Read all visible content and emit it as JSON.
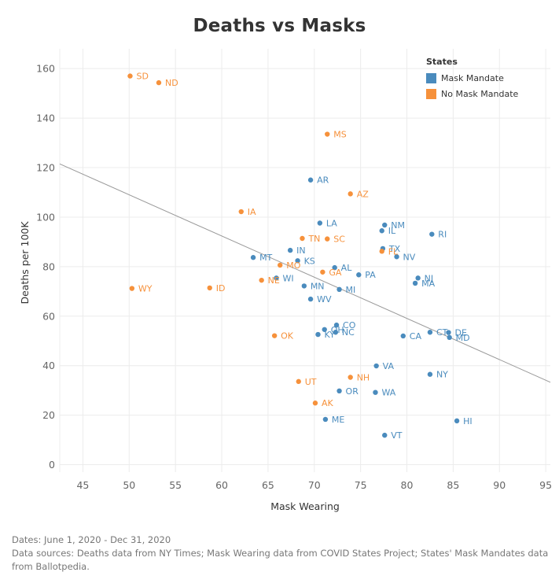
{
  "title": "Deaths vs Masks",
  "colors": {
    "mask": "#4a8bbd",
    "no_mask": "#f6913b",
    "trend": "#999999",
    "grid": "#ececec"
  },
  "legend": {
    "title": "States",
    "items": [
      {
        "key": "mask",
        "label": "Mask Mandate"
      },
      {
        "key": "no_mask",
        "label": "No Mask Mandate"
      }
    ]
  },
  "footnote": {
    "dates": "Dates: June 1, 2020 - Dec 31, 2020",
    "sources": "Data sources: Deaths data from NY Times; Mask Wearing data from COVID States Project; States' Mask Mandates data from Ballotpedia."
  },
  "chart_data": {
    "type": "scatter",
    "xlabel": "Mask Wearing",
    "ylabel": "Deaths per 100K",
    "xlim": [
      42.5,
      95.5
    ],
    "ylim": [
      -3,
      168
    ],
    "xticks": [
      45,
      50,
      55,
      60,
      65,
      70,
      75,
      80,
      85,
      90,
      95
    ],
    "yticks": [
      0,
      20,
      40,
      60,
      80,
      100,
      120,
      140,
      160
    ],
    "trend_line": {
      "x": [
        42.5,
        95.5
      ],
      "y": [
        121.5,
        33.3
      ]
    },
    "series": [
      {
        "name": "Mask Mandate",
        "key": "mask",
        "points": [
          {
            "label": "AR",
            "x": 69.6,
            "y": 115.0
          },
          {
            "label": "NM",
            "x": 77.6,
            "y": 96.8
          },
          {
            "label": "IL",
            "x": 77.3,
            "y": 94.5
          },
          {
            "label": "RI",
            "x": 82.7,
            "y": 93.1
          },
          {
            "label": "LA",
            "x": 70.6,
            "y": 97.6
          },
          {
            "label": "TX",
            "x": 77.4,
            "y": 87.3
          },
          {
            "label": "NV",
            "x": 78.9,
            "y": 84.0
          },
          {
            "label": "IN",
            "x": 67.4,
            "y": 86.6
          },
          {
            "label": "KS",
            "x": 68.2,
            "y": 82.4
          },
          {
            "label": "MT",
            "x": 63.4,
            "y": 83.7
          },
          {
            "label": "AL",
            "x": 72.2,
            "y": 79.6
          },
          {
            "label": "PA",
            "x": 74.8,
            "y": 76.7
          },
          {
            "label": "NJ",
            "x": 81.2,
            "y": 75.4
          },
          {
            "label": "MA",
            "x": 80.9,
            "y": 73.3
          },
          {
            "label": "WI",
            "x": 65.9,
            "y": 75.4
          },
          {
            "label": "MN",
            "x": 68.9,
            "y": 72.2
          },
          {
            "label": "MI",
            "x": 72.7,
            "y": 70.8
          },
          {
            "label": "WV",
            "x": 69.6,
            "y": 66.9
          },
          {
            "label": "CO",
            "x": 72.4,
            "y": 56.4
          },
          {
            "label": "OH",
            "x": 71.1,
            "y": 54.6
          },
          {
            "label": "KY",
            "x": 70.4,
            "y": 52.6
          },
          {
            "label": "NC",
            "x": 72.3,
            "y": 53.5
          },
          {
            "label": "CT",
            "x": 82.5,
            "y": 53.5
          },
          {
            "label": "DE",
            "x": 84.5,
            "y": 53.4
          },
          {
            "label": "MD",
            "x": 84.6,
            "y": 51.4
          },
          {
            "label": "CA",
            "x": 79.6,
            "y": 52.0
          },
          {
            "label": "VA",
            "x": 76.7,
            "y": 39.9
          },
          {
            "label": "NY",
            "x": 82.5,
            "y": 36.5
          },
          {
            "label": "OR",
            "x": 72.7,
            "y": 29.8
          },
          {
            "label": "WA",
            "x": 76.6,
            "y": 29.2
          },
          {
            "label": "ME",
            "x": 71.2,
            "y": 18.3
          },
          {
            "label": "HI",
            "x": 85.4,
            "y": 17.7
          },
          {
            "label": "VT",
            "x": 77.6,
            "y": 11.9
          }
        ]
      },
      {
        "name": "No Mask Mandate",
        "key": "no_mask",
        "points": [
          {
            "label": "SD",
            "x": 50.1,
            "y": 157.0
          },
          {
            "label": "ND",
            "x": 53.2,
            "y": 154.3
          },
          {
            "label": "MS",
            "x": 71.4,
            "y": 133.5
          },
          {
            "label": "AZ",
            "x": 73.9,
            "y": 109.4
          },
          {
            "label": "IA",
            "x": 62.1,
            "y": 102.2
          },
          {
            "label": "TN",
            "x": 68.7,
            "y": 91.4
          },
          {
            "label": "SC",
            "x": 71.4,
            "y": 91.2
          },
          {
            "label": "FL",
            "x": 77.3,
            "y": 86.2
          },
          {
            "label": "MO",
            "x": 66.3,
            "y": 80.6
          },
          {
            "label": "GA",
            "x": 70.9,
            "y": 77.8
          },
          {
            "label": "NE",
            "x": 64.3,
            "y": 74.5
          },
          {
            "label": "WY",
            "x": 50.3,
            "y": 71.2
          },
          {
            "label": "ID",
            "x": 58.7,
            "y": 71.4
          },
          {
            "label": "OK",
            "x": 65.7,
            "y": 52.1
          },
          {
            "label": "NH",
            "x": 73.9,
            "y": 35.3
          },
          {
            "label": "UT",
            "x": 68.3,
            "y": 33.6
          },
          {
            "label": "AK",
            "x": 70.1,
            "y": 24.9
          }
        ]
      }
    ]
  }
}
